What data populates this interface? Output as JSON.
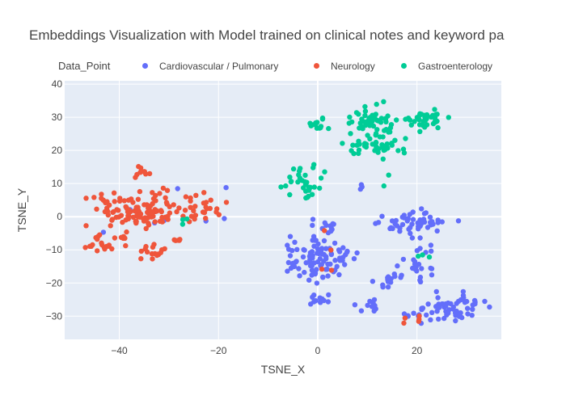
{
  "chart_data": {
    "type": "scatter",
    "title": "Embeddings Visualization with Model trained on clinical notes and keyword pa",
    "xlabel": "TSNE_X",
    "ylabel": "TSNE_Y",
    "xlim": [
      -51,
      37
    ],
    "ylim": [
      -37,
      41
    ],
    "xticks": [
      -40,
      -20,
      0,
      20
    ],
    "yticks": [
      -30,
      -20,
      -10,
      0,
      10,
      20,
      30,
      40
    ],
    "grid": true,
    "legend_title": "Data_Point",
    "legend_position": "top",
    "series": [
      {
        "name": "Cardiovascular / Pulmonary",
        "color": "#636efa",
        "clusters": [
          {
            "cx": 0,
            "cy": -13,
            "sx": 3.6,
            "sy": 3.2,
            "n": 95
          },
          {
            "cx": 20,
            "cy": -2,
            "sx": 3.8,
            "sy": 2.0,
            "n": 50
          },
          {
            "cx": 28,
            "cy": -27,
            "sx": 3.2,
            "sy": 2.0,
            "n": 55
          },
          {
            "cx": 14,
            "cy": -19,
            "sx": 1.4,
            "sy": 1.0,
            "n": 16
          },
          {
            "cx": 20,
            "cy": -14,
            "sx": 1.8,
            "sy": 3.0,
            "n": 22
          },
          {
            "cx": 11,
            "cy": -27,
            "sx": 1.6,
            "sy": 0.9,
            "n": 10
          },
          {
            "cx": 1,
            "cy": -25,
            "sx": 1.2,
            "sy": 1.0,
            "n": 12
          },
          {
            "cx": 2,
            "cy": -3,
            "sx": 1.4,
            "sy": 1.4,
            "n": 12
          },
          {
            "cx": 20,
            "cy": -30,
            "sx": 1.2,
            "sy": 1.0,
            "n": 8
          },
          {
            "cx": -30,
            "cy": 1,
            "sx": 6.0,
            "sy": 4.0,
            "n": 8
          },
          {
            "cx": 9,
            "cy": 9,
            "sx": 0.8,
            "sy": 0.5,
            "n": 3
          }
        ]
      },
      {
        "name": "Neurology",
        "color": "#ef553b",
        "clusters": [
          {
            "cx": -37,
            "cy": 2,
            "sx": 4.4,
            "sy": 3.0,
            "n": 110
          },
          {
            "cx": -25,
            "cy": 2,
            "sx": 3.0,
            "sy": 2.4,
            "n": 30
          },
          {
            "cx": -44,
            "cy": -9,
            "sx": 1.4,
            "sy": 1.6,
            "n": 18
          },
          {
            "cx": -34,
            "cy": -11,
            "sx": 1.6,
            "sy": 1.2,
            "n": 16
          },
          {
            "cx": -35,
            "cy": 13,
            "sx": 0.8,
            "sy": 1.0,
            "n": 9
          },
          {
            "cx": -39,
            "cy": -7,
            "sx": 0.6,
            "sy": 1.0,
            "n": 6
          },
          {
            "cx": -28,
            "cy": -7,
            "sx": 1.0,
            "sy": 0.8,
            "n": 5
          },
          {
            "cx": 20,
            "cy": -31,
            "sx": 1.2,
            "sy": 0.8,
            "n": 5
          },
          {
            "cx": 1,
            "cy": -13,
            "sx": 2.0,
            "sy": 4.0,
            "n": 4
          }
        ]
      },
      {
        "name": "Gastroenterology",
        "color": "#00cc96",
        "clusters": [
          {
            "cx": 11,
            "cy": 29,
            "sx": 2.2,
            "sy": 2.6,
            "n": 50
          },
          {
            "cx": 22,
            "cy": 29,
            "sx": 2.2,
            "sy": 1.8,
            "n": 35
          },
          {
            "cx": 14,
            "cy": 22,
            "sx": 1.8,
            "sy": 1.4,
            "n": 22
          },
          {
            "cx": 9,
            "cy": 21,
            "sx": 2.0,
            "sy": 1.0,
            "n": 18
          },
          {
            "cx": -3,
            "cy": 10,
            "sx": 2.0,
            "sy": 2.6,
            "n": 32
          },
          {
            "cx": 0,
            "cy": 28,
            "sx": 1.0,
            "sy": 0.8,
            "n": 14
          },
          {
            "cx": 14,
            "cy": 13,
            "sx": 0.5,
            "sy": 2.0,
            "n": 3
          },
          {
            "cx": -27,
            "cy": 1,
            "sx": 0.5,
            "sy": 8.0,
            "n": 3
          },
          {
            "cx": 22,
            "cy": -12,
            "sx": 1.2,
            "sy": 1.2,
            "n": 3
          }
        ]
      }
    ]
  }
}
